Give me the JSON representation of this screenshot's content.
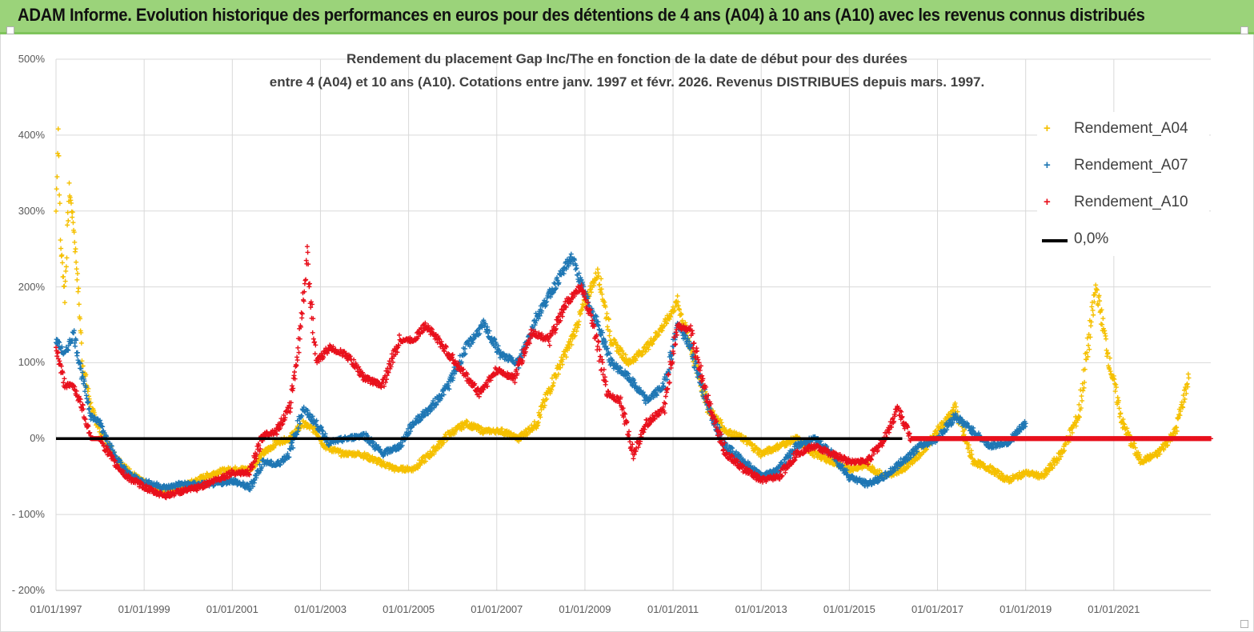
{
  "banner": {
    "title": "ADAM Informe. Evolution historique des performances en euros pour des détentions de 4 ans (A04) à 10 ans (A10) avec les revenus connus distribués"
  },
  "chart_data": {
    "type": "scatter",
    "title_line1": "Rendement du placement Gap Inc/The en fonction de la date de début pour des durées",
    "title_line2": "entre 4 (A04) et 10 ans (A10).  Cotations entre janv. 1997 et févr. 2026. Revenus  DISTRIBUES depuis mars. 1997.",
    "ylim": [
      -200,
      500
    ],
    "yticks": [
      500,
      400,
      300,
      200,
      100,
      0,
      -100,
      -200
    ],
    "ytick_labels": [
      "500%",
      "400%",
      "300%",
      "200%",
      "100%",
      "0%",
      "- 100%",
      "- 200%"
    ],
    "xlim": [
      1997.0,
      2023.2
    ],
    "xticks": [
      1997,
      1999,
      2001,
      2003,
      2005,
      2007,
      2009,
      2011,
      2013,
      2015,
      2017,
      2019,
      2021
    ],
    "xtick_labels": [
      "01/01/1997",
      "01/01/1999",
      "01/01/2001",
      "01/01/2003",
      "01/01/2005",
      "01/01/2007",
      "01/01/2009",
      "01/01/2011",
      "01/01/2013",
      "01/01/2015",
      "01/01/2017",
      "01/01/2019",
      "01/01/2021"
    ],
    "grid": true,
    "legend_position": "top-right",
    "series": [
      {
        "name": "Rendement_A04",
        "color": "#f5c000",
        "marker": "+",
        "points": [
          [
            1997.0,
            300
          ],
          [
            1997.05,
            410
          ],
          [
            1997.1,
            260
          ],
          [
            1997.2,
            190
          ],
          [
            1997.3,
            330
          ],
          [
            1997.4,
            280
          ],
          [
            1997.5,
            200
          ],
          [
            1997.6,
            100
          ],
          [
            1997.8,
            40
          ],
          [
            1998.0,
            10
          ],
          [
            1998.3,
            -20
          ],
          [
            1998.6,
            -40
          ],
          [
            1998.9,
            -55
          ],
          [
            1999.2,
            -65
          ],
          [
            1999.5,
            -70
          ],
          [
            1999.8,
            -65
          ],
          [
            2000.2,
            -55
          ],
          [
            2000.6,
            -45
          ],
          [
            2001.0,
            -40
          ],
          [
            2001.4,
            -40
          ],
          [
            2001.7,
            -20
          ],
          [
            2002.0,
            -5
          ],
          [
            2002.3,
            0
          ],
          [
            2002.6,
            20
          ],
          [
            2002.9,
            10
          ],
          [
            2003.1,
            -10
          ],
          [
            2003.5,
            -20
          ],
          [
            2003.9,
            -20
          ],
          [
            2004.3,
            -30
          ],
          [
            2004.7,
            -40
          ],
          [
            2005.1,
            -40
          ],
          [
            2005.5,
            -20
          ],
          [
            2005.9,
            5
          ],
          [
            2006.3,
            20
          ],
          [
            2006.7,
            10
          ],
          [
            2007.1,
            10
          ],
          [
            2007.5,
            0
          ],
          [
            2007.9,
            20
          ],
          [
            2008.3,
            80
          ],
          [
            2008.7,
            130
          ],
          [
            2009.0,
            180
          ],
          [
            2009.3,
            220
          ],
          [
            2009.6,
            130
          ],
          [
            2010.0,
            100
          ],
          [
            2010.4,
            120
          ],
          [
            2010.8,
            150
          ],
          [
            2011.1,
            180
          ],
          [
            2011.4,
            120
          ],
          [
            2011.8,
            40
          ],
          [
            2012.2,
            10
          ],
          [
            2012.6,
            0
          ],
          [
            2013.0,
            -20
          ],
          [
            2013.4,
            -10
          ],
          [
            2013.8,
            0
          ],
          [
            2014.2,
            -20
          ],
          [
            2014.6,
            -30
          ],
          [
            2015.0,
            -40
          ],
          [
            2015.4,
            -35
          ],
          [
            2015.8,
            -50
          ],
          [
            2016.2,
            -40
          ],
          [
            2016.6,
            -20
          ],
          [
            2017.0,
            10
          ],
          [
            2017.4,
            40
          ],
          [
            2017.8,
            -30
          ],
          [
            2018.2,
            -40
          ],
          [
            2018.6,
            -55
          ],
          [
            2019.0,
            -45
          ],
          [
            2019.4,
            -50
          ],
          [
            2019.8,
            -20
          ],
          [
            2020.2,
            30
          ],
          [
            2020.6,
            200
          ],
          [
            2020.9,
            100
          ],
          [
            2021.2,
            20
          ],
          [
            2021.6,
            -30
          ],
          [
            2022.0,
            -20
          ],
          [
            2022.4,
            10
          ],
          [
            2022.7,
            80
          ]
        ]
      },
      {
        "name": "Rendement_A07",
        "color": "#1f77b4",
        "marker": "+",
        "points": [
          [
            1997.0,
            130
          ],
          [
            1997.2,
            110
          ],
          [
            1997.4,
            140
          ],
          [
            1997.6,
            80
          ],
          [
            1997.8,
            30
          ],
          [
            1998.0,
            20
          ],
          [
            1998.3,
            -20
          ],
          [
            1998.6,
            -45
          ],
          [
            1998.9,
            -55
          ],
          [
            1999.2,
            -60
          ],
          [
            1999.5,
            -65
          ],
          [
            1999.8,
            -60
          ],
          [
            2000.2,
            -60
          ],
          [
            2000.6,
            -60
          ],
          [
            2001.0,
            -55
          ],
          [
            2001.4,
            -65
          ],
          [
            2001.7,
            -30
          ],
          [
            2002.0,
            -35
          ],
          [
            2002.3,
            -20
          ],
          [
            2002.6,
            40
          ],
          [
            2002.9,
            20
          ],
          [
            2003.2,
            -5
          ],
          [
            2003.6,
            0
          ],
          [
            2004.0,
            5
          ],
          [
            2004.4,
            -20
          ],
          [
            2004.8,
            -10
          ],
          [
            2005.1,
            20
          ],
          [
            2005.5,
            40
          ],
          [
            2005.9,
            70
          ],
          [
            2006.3,
            120
          ],
          [
            2006.7,
            150
          ],
          [
            2007.1,
            110
          ],
          [
            2007.5,
            100
          ],
          [
            2007.9,
            160
          ],
          [
            2008.3,
            200
          ],
          [
            2008.7,
            240
          ],
          [
            2009.0,
            190
          ],
          [
            2009.3,
            150
          ],
          [
            2009.6,
            100
          ],
          [
            2010.0,
            80
          ],
          [
            2010.4,
            50
          ],
          [
            2010.8,
            70
          ],
          [
            2011.1,
            150
          ],
          [
            2011.4,
            120
          ],
          [
            2011.8,
            40
          ],
          [
            2012.2,
            -10
          ],
          [
            2012.6,
            -30
          ],
          [
            2013.0,
            -50
          ],
          [
            2013.4,
            -40
          ],
          [
            2013.8,
            -10
          ],
          [
            2014.2,
            0
          ],
          [
            2014.6,
            -20
          ],
          [
            2015.0,
            -50
          ],
          [
            2015.4,
            -60
          ],
          [
            2015.8,
            -50
          ],
          [
            2016.2,
            -30
          ],
          [
            2016.6,
            -10
          ],
          [
            2017.0,
            0
          ],
          [
            2017.4,
            30
          ],
          [
            2017.8,
            10
          ],
          [
            2018.2,
            -10
          ],
          [
            2018.6,
            -5
          ],
          [
            2019.0,
            20
          ]
        ]
      },
      {
        "name": "Rendement_A10",
        "color": "#e8101c",
        "marker": "+",
        "points": [
          [
            1997.0,
            120
          ],
          [
            1997.2,
            70
          ],
          [
            1997.4,
            70
          ],
          [
            1997.6,
            40
          ],
          [
            1997.8,
            0
          ],
          [
            1998.0,
            0
          ],
          [
            1998.3,
            -30
          ],
          [
            1998.6,
            -50
          ],
          [
            1998.9,
            -60
          ],
          [
            1999.2,
            -70
          ],
          [
            1999.5,
            -75
          ],
          [
            1999.8,
            -70
          ],
          [
            2000.2,
            -65
          ],
          [
            2000.6,
            -55
          ],
          [
            2001.0,
            -45
          ],
          [
            2001.4,
            -45
          ],
          [
            2001.7,
            5
          ],
          [
            2002.0,
            10
          ],
          [
            2002.3,
            40
          ],
          [
            2002.5,
            120
          ],
          [
            2002.7,
            240
          ],
          [
            2002.9,
            100
          ],
          [
            2003.2,
            120
          ],
          [
            2003.6,
            110
          ],
          [
            2004.0,
            80
          ],
          [
            2004.4,
            70
          ],
          [
            2004.8,
            130
          ],
          [
            2005.1,
            130
          ],
          [
            2005.4,
            150
          ],
          [
            2005.8,
            120
          ],
          [
            2006.2,
            90
          ],
          [
            2006.6,
            60
          ],
          [
            2007.0,
            90
          ],
          [
            2007.4,
            80
          ],
          [
            2007.8,
            140
          ],
          [
            2008.2,
            130
          ],
          [
            2008.6,
            180
          ],
          [
            2008.9,
            200
          ],
          [
            2009.2,
            150
          ],
          [
            2009.5,
            60
          ],
          [
            2009.8,
            50
          ],
          [
            2010.1,
            -20
          ],
          [
            2010.4,
            20
          ],
          [
            2010.8,
            40
          ],
          [
            2011.1,
            150
          ],
          [
            2011.4,
            140
          ],
          [
            2011.8,
            50
          ],
          [
            2012.2,
            -20
          ],
          [
            2012.6,
            -40
          ],
          [
            2013.0,
            -55
          ],
          [
            2013.4,
            -50
          ],
          [
            2013.8,
            -20
          ],
          [
            2014.2,
            -10
          ],
          [
            2014.6,
            -20
          ],
          [
            2015.0,
            -30
          ],
          [
            2015.4,
            -30
          ],
          [
            2015.8,
            0
          ],
          [
            2016.1,
            40
          ],
          [
            2016.4,
            0
          ],
          [
            2017.0,
            0
          ],
          [
            2018.0,
            0
          ],
          [
            2019.0,
            0
          ],
          [
            2020.0,
            0
          ],
          [
            2021.0,
            0
          ],
          [
            2022.0,
            0
          ],
          [
            2023.2,
            0
          ]
        ]
      },
      {
        "name": "0,0%",
        "color": "#000000",
        "marker": "line",
        "points": [
          [
            1997.0,
            0
          ],
          [
            2016.2,
            0
          ]
        ]
      }
    ]
  }
}
